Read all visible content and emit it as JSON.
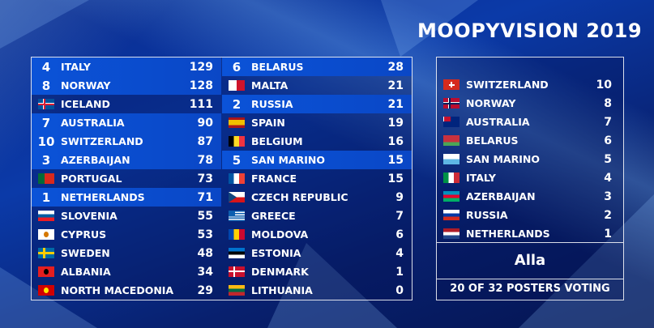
{
  "title": "MOOPYVISION 2019",
  "scoreboard_left": [
    {
      "name": "ITALY",
      "score": "129",
      "given": "4",
      "flag": "it"
    },
    {
      "name": "NORWAY",
      "score": "128",
      "given": "8",
      "flag": "no"
    },
    {
      "name": "ICELAND",
      "score": "111",
      "given": "",
      "flag": "is"
    },
    {
      "name": "AUSTRALIA",
      "score": "90",
      "given": "7",
      "flag": "au"
    },
    {
      "name": "SWITZERLAND",
      "score": "87",
      "given": "10",
      "flag": "ch"
    },
    {
      "name": "AZERBAIJAN",
      "score": "78",
      "given": "3",
      "flag": "az"
    },
    {
      "name": "PORTUGAL",
      "score": "73",
      "given": "",
      "flag": "pt"
    },
    {
      "name": "NETHERLANDS",
      "score": "71",
      "given": "1",
      "flag": "nl"
    },
    {
      "name": "SLOVENIA",
      "score": "55",
      "given": "",
      "flag": "si"
    },
    {
      "name": "CYPRUS",
      "score": "53",
      "given": "",
      "flag": "cy"
    },
    {
      "name": "SWEDEN",
      "score": "48",
      "given": "",
      "flag": "se"
    },
    {
      "name": "ALBANIA",
      "score": "34",
      "given": "",
      "flag": "al"
    },
    {
      "name": "NORTH MACEDONIA",
      "score": "29",
      "given": "",
      "flag": "mk"
    }
  ],
  "scoreboard_right": [
    {
      "name": "BELARUS",
      "score": "28",
      "given": "6",
      "flag": "by"
    },
    {
      "name": "MALTA",
      "score": "21",
      "given": "",
      "flag": "mt"
    },
    {
      "name": "RUSSIA",
      "score": "21",
      "given": "2",
      "flag": "ru"
    },
    {
      "name": "SPAIN",
      "score": "19",
      "given": "",
      "flag": "es"
    },
    {
      "name": "BELGIUM",
      "score": "16",
      "given": "",
      "flag": "be"
    },
    {
      "name": "SAN MARINO",
      "score": "15",
      "given": "5",
      "flag": "sm"
    },
    {
      "name": "FRANCE",
      "score": "15",
      "given": "",
      "flag": "fr"
    },
    {
      "name": "CZECH REPUBLIC",
      "score": "9",
      "given": "",
      "flag": "cz"
    },
    {
      "name": "GREECE",
      "score": "7",
      "given": "",
      "flag": "gr"
    },
    {
      "name": "MOLDOVA",
      "score": "6",
      "given": "",
      "flag": "md"
    },
    {
      "name": "ESTONIA",
      "score": "4",
      "given": "",
      "flag": "ee"
    },
    {
      "name": "DENMARK",
      "score": "1",
      "given": "",
      "flag": "dk"
    },
    {
      "name": "LITHUANIA",
      "score": "0",
      "given": "",
      "flag": "lt"
    }
  ],
  "votes_panel": {
    "votes": [
      {
        "name": "SWITZERLAND",
        "points": "10",
        "flag": "ch"
      },
      {
        "name": "NORWAY",
        "points": "8",
        "flag": "no"
      },
      {
        "name": "AUSTRALIA",
        "points": "7",
        "flag": "au"
      },
      {
        "name": "BELARUS",
        "points": "6",
        "flag": "by"
      },
      {
        "name": "SAN MARINO",
        "points": "5",
        "flag": "sm"
      },
      {
        "name": "ITALY",
        "points": "4",
        "flag": "it"
      },
      {
        "name": "AZERBAIJAN",
        "points": "3",
        "flag": "az"
      },
      {
        "name": "RUSSIA",
        "points": "2",
        "flag": "ru"
      },
      {
        "name": "NETHERLANDS",
        "points": "1",
        "flag": "nl"
      }
    ],
    "voter": "Alla",
    "status": "20 OF 32 POSTERS VOTING"
  },
  "colors": {
    "highlight_row": "#0b53d8",
    "text": "#ffffff",
    "border": "#ffffff"
  }
}
